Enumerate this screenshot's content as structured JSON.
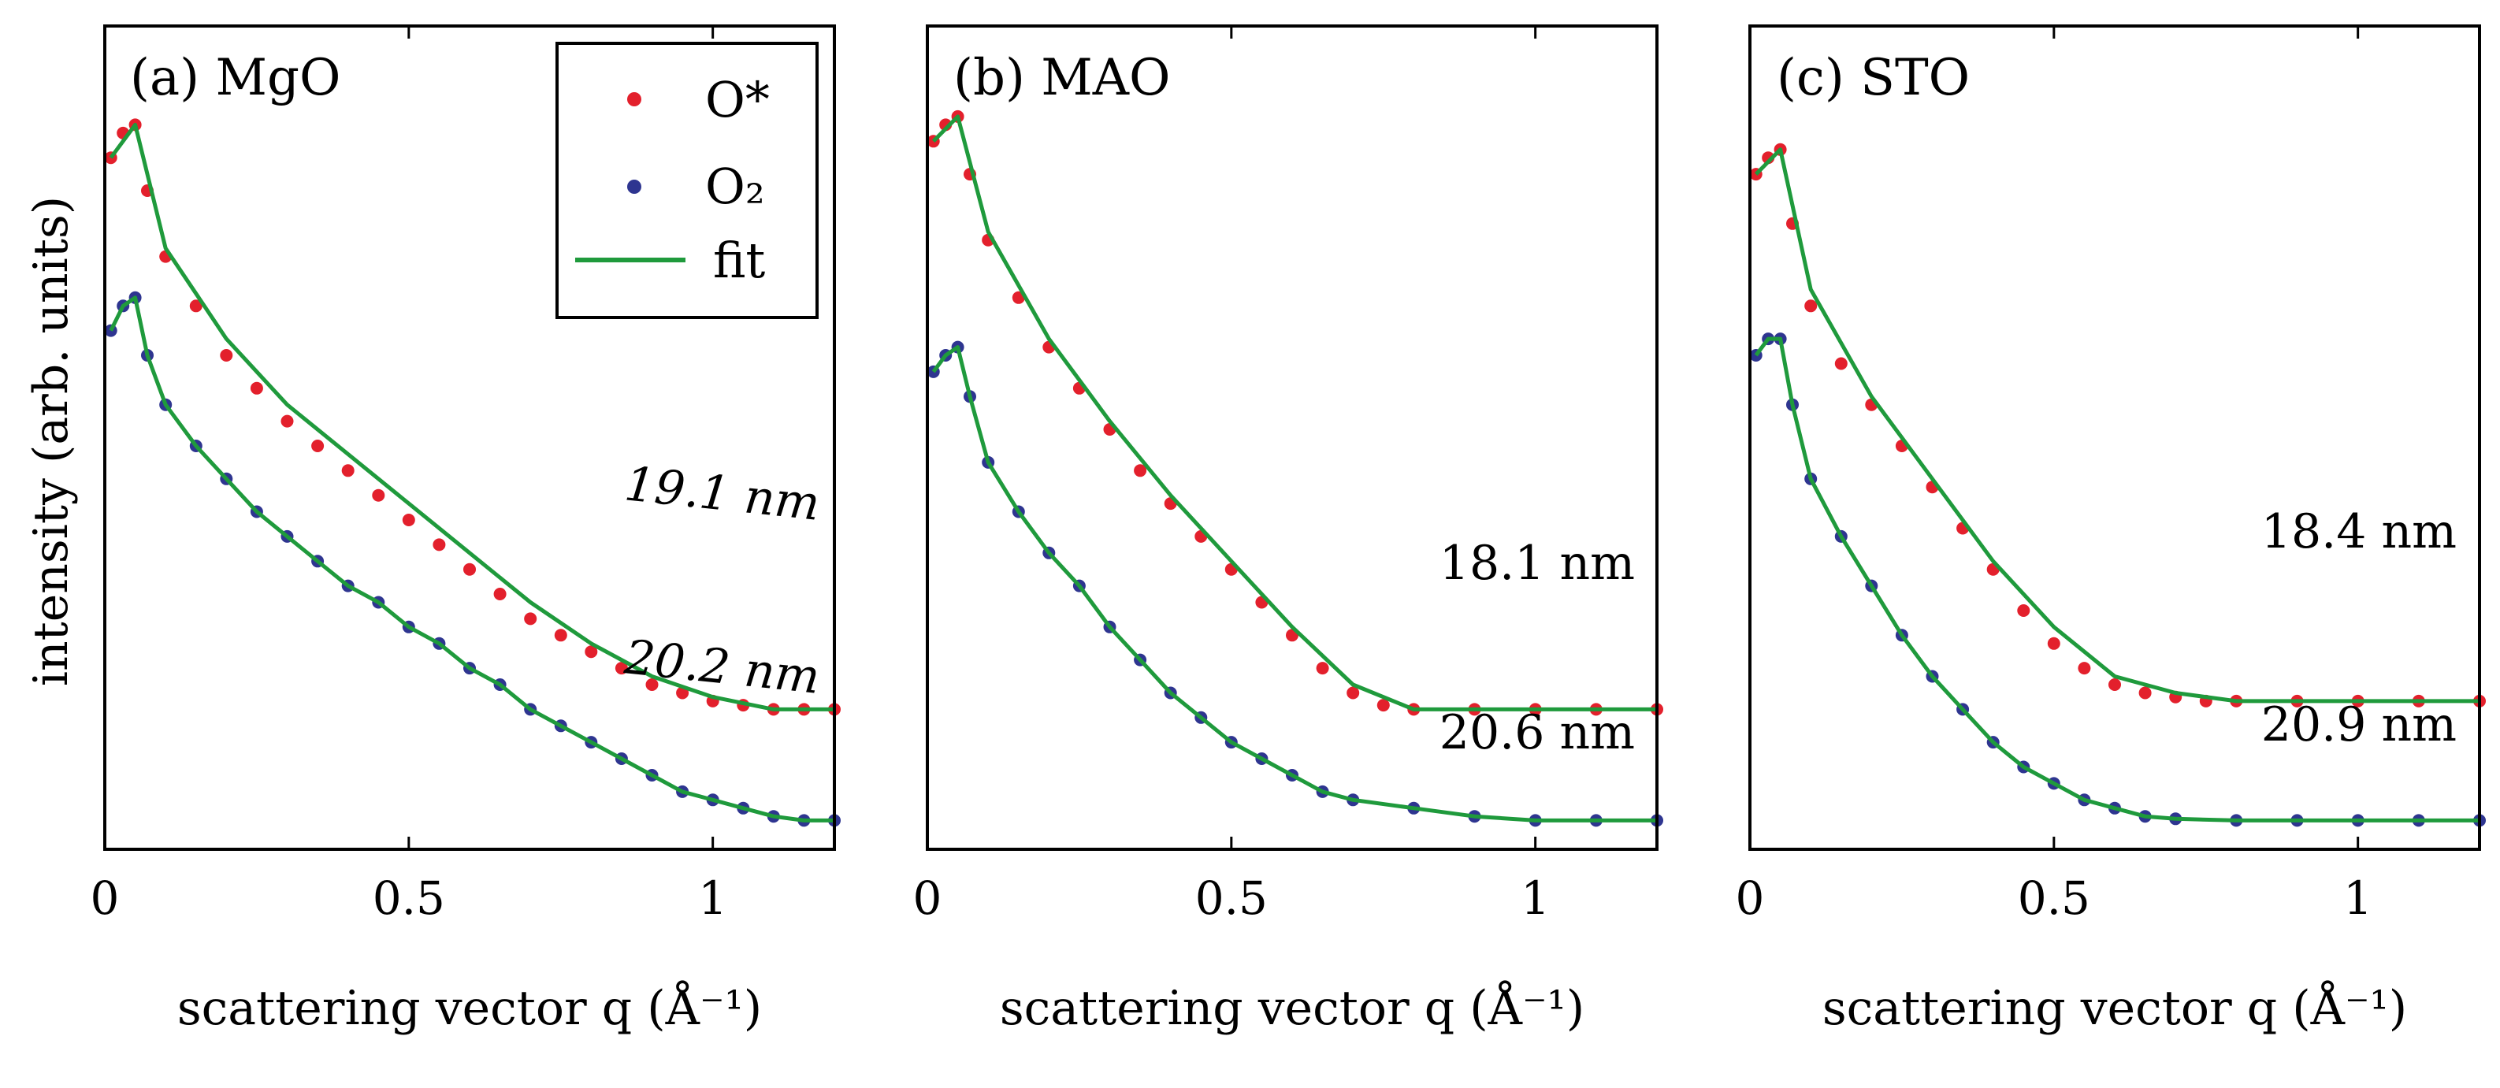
{
  "colors": {
    "red": "#e3202c",
    "blue": "#2e3590",
    "green": "#1f9a3c"
  },
  "y_axis_label": "intensity (arb. units)",
  "x_axis_label": "scattering vector q (Å⁻¹)",
  "legend": {
    "entries": [
      "O*",
      "O₂",
      "fit"
    ]
  },
  "chart_data": [
    {
      "type": "scatter",
      "title": "(a) MgO",
      "xlabel": "scattering vector q (Å⁻¹)",
      "ylabel": "intensity (arb. units)",
      "xlim": [
        0,
        1.2
      ],
      "ylim": [
        0,
        1
      ],
      "xticks": [
        0,
        0.5,
        1
      ],
      "xtick_labels": [
        "0",
        "0.5",
        "1"
      ],
      "annotations": [
        "19.1 nm",
        "20.2 nm"
      ],
      "series": [
        {
          "name": "O*",
          "x": [
            0.01,
            0.03,
            0.05,
            0.07,
            0.1,
            0.15,
            0.2,
            0.25,
            0.3,
            0.35,
            0.4,
            0.45,
            0.5,
            0.55,
            0.6,
            0.65,
            0.7,
            0.75,
            0.8,
            0.85,
            0.9,
            0.95,
            1.0,
            1.05,
            1.1,
            1.15,
            1.2
          ],
          "values": [
            0.84,
            0.87,
            0.88,
            0.8,
            0.72,
            0.66,
            0.6,
            0.56,
            0.52,
            0.49,
            0.46,
            0.43,
            0.4,
            0.37,
            0.34,
            0.31,
            0.28,
            0.26,
            0.24,
            0.22,
            0.2,
            0.19,
            0.18,
            0.175,
            0.17,
            0.17,
            0.17
          ]
        },
        {
          "name": "O₂",
          "x": [
            0.01,
            0.03,
            0.05,
            0.07,
            0.1,
            0.15,
            0.2,
            0.25,
            0.3,
            0.35,
            0.4,
            0.45,
            0.5,
            0.55,
            0.6,
            0.65,
            0.7,
            0.75,
            0.8,
            0.85,
            0.9,
            0.95,
            1.0,
            1.05,
            1.1,
            1.15,
            1.2
          ],
          "values": [
            0.63,
            0.66,
            0.67,
            0.6,
            0.54,
            0.49,
            0.45,
            0.41,
            0.38,
            0.35,
            0.32,
            0.3,
            0.27,
            0.25,
            0.22,
            0.2,
            0.17,
            0.15,
            0.13,
            0.11,
            0.09,
            0.07,
            0.06,
            0.05,
            0.04,
            0.035,
            0.035
          ]
        },
        {
          "name": "fit",
          "x": [
            0.01,
            0.05,
            0.1,
            0.2,
            0.3,
            0.4,
            0.5,
            0.6,
            0.7,
            0.8,
            0.9,
            1.0,
            1.1,
            1.2
          ],
          "values": [
            0.84,
            0.88,
            0.73,
            0.62,
            0.54,
            0.48,
            0.42,
            0.36,
            0.3,
            0.25,
            0.21,
            0.185,
            0.17,
            0.17
          ]
        }
      ]
    },
    {
      "type": "scatter",
      "title": "(b) MAO",
      "xlabel": "scattering vector q (Å⁻¹)",
      "ylabel": "intensity (arb. units)",
      "xlim": [
        0,
        1.2
      ],
      "ylim": [
        0,
        1
      ],
      "xticks": [
        0,
        0.5,
        1
      ],
      "xtick_labels": [
        "0",
        "0.5",
        "1"
      ],
      "annotations": [
        "18.1 nm",
        "20.6 nm"
      ],
      "series": [
        {
          "name": "O*",
          "x": [
            0.01,
            0.03,
            0.05,
            0.07,
            0.1,
            0.15,
            0.2,
            0.25,
            0.3,
            0.35,
            0.4,
            0.45,
            0.5,
            0.55,
            0.6,
            0.65,
            0.7,
            0.75,
            0.8,
            0.9,
            1.0,
            1.1,
            1.2
          ],
          "values": [
            0.86,
            0.88,
            0.89,
            0.82,
            0.74,
            0.67,
            0.61,
            0.56,
            0.51,
            0.46,
            0.42,
            0.38,
            0.34,
            0.3,
            0.26,
            0.22,
            0.19,
            0.175,
            0.17,
            0.17,
            0.17,
            0.17,
            0.17
          ]
        },
        {
          "name": "O₂",
          "x": [
            0.01,
            0.03,
            0.05,
            0.07,
            0.1,
            0.15,
            0.2,
            0.25,
            0.3,
            0.35,
            0.4,
            0.45,
            0.5,
            0.55,
            0.6,
            0.65,
            0.7,
            0.8,
            0.9,
            1.0,
            1.1,
            1.2
          ],
          "values": [
            0.58,
            0.6,
            0.61,
            0.55,
            0.47,
            0.41,
            0.36,
            0.32,
            0.27,
            0.23,
            0.19,
            0.16,
            0.13,
            0.11,
            0.09,
            0.07,
            0.06,
            0.05,
            0.04,
            0.035,
            0.035,
            0.035
          ]
        },
        {
          "name": "fit",
          "x": [
            0.01,
            0.05,
            0.1,
            0.2,
            0.3,
            0.4,
            0.5,
            0.6,
            0.7,
            0.8,
            0.9,
            1.0,
            1.1,
            1.2
          ],
          "values": [
            0.86,
            0.89,
            0.75,
            0.62,
            0.52,
            0.43,
            0.35,
            0.27,
            0.2,
            0.17,
            0.17,
            0.17,
            0.17,
            0.17
          ]
        }
      ]
    },
    {
      "type": "scatter",
      "title": "(c) STO",
      "xlabel": "scattering vector q (Å⁻¹)",
      "ylabel": "intensity (arb. units)",
      "xlim": [
        0,
        1.2
      ],
      "ylim": [
        0,
        1
      ],
      "xticks": [
        0,
        0.5,
        1
      ],
      "xtick_labels": [
        "0",
        "0.5",
        "1"
      ],
      "annotations": [
        "18.4 nm",
        "20.9 nm"
      ],
      "series": [
        {
          "name": "O*",
          "x": [
            0.01,
            0.03,
            0.05,
            0.07,
            0.1,
            0.15,
            0.2,
            0.25,
            0.3,
            0.35,
            0.4,
            0.45,
            0.5,
            0.55,
            0.6,
            0.65,
            0.7,
            0.75,
            0.8,
            0.9,
            1.0,
            1.1,
            1.2
          ],
          "values": [
            0.82,
            0.84,
            0.85,
            0.76,
            0.66,
            0.59,
            0.54,
            0.49,
            0.44,
            0.39,
            0.34,
            0.29,
            0.25,
            0.22,
            0.2,
            0.19,
            0.185,
            0.18,
            0.18,
            0.18,
            0.18,
            0.18,
            0.18
          ]
        },
        {
          "name": "O₂",
          "x": [
            0.01,
            0.03,
            0.05,
            0.07,
            0.1,
            0.15,
            0.2,
            0.25,
            0.3,
            0.35,
            0.4,
            0.45,
            0.5,
            0.55,
            0.6,
            0.65,
            0.7,
            0.8,
            0.9,
            1.0,
            1.1,
            1.2
          ],
          "values": [
            0.6,
            0.62,
            0.62,
            0.54,
            0.45,
            0.38,
            0.32,
            0.26,
            0.21,
            0.17,
            0.13,
            0.1,
            0.08,
            0.06,
            0.05,
            0.04,
            0.037,
            0.035,
            0.035,
            0.035,
            0.035,
            0.035
          ]
        },
        {
          "name": "fit",
          "x": [
            0.01,
            0.05,
            0.1,
            0.2,
            0.3,
            0.4,
            0.5,
            0.6,
            0.7,
            0.8,
            0.9,
            1.0,
            1.1,
            1.2
          ],
          "values": [
            0.82,
            0.85,
            0.68,
            0.55,
            0.45,
            0.35,
            0.27,
            0.21,
            0.19,
            0.18,
            0.18,
            0.18,
            0.18,
            0.18
          ]
        }
      ]
    }
  ]
}
